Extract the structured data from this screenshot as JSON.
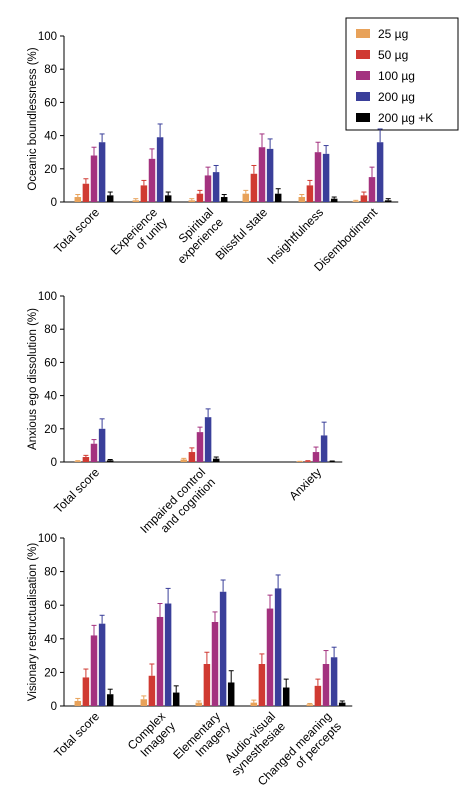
{
  "legend": {
    "items": [
      {
        "label": "25 µg",
        "color": "#e8a25a"
      },
      {
        "label": "50 µg",
        "color": "#d03a32"
      },
      {
        "label": "100 µg",
        "color": "#a3327f"
      },
      {
        "label": "200 µg",
        "color": "#3a3f9a"
      },
      {
        "label": "200 µg +K",
        "color": "#000000"
      }
    ]
  },
  "chart_data": [
    {
      "type": "bar",
      "ylabel": "Oceanic boundlessness (%)",
      "ylim": [
        0,
        100
      ],
      "yticks": [
        0,
        20,
        40,
        60,
        80,
        100
      ],
      "categories": [
        [
          "Total score"
        ],
        [
          "Experience",
          "of unity"
        ],
        [
          "Spiritual",
          "experience"
        ],
        [
          "Blissful state"
        ],
        [
          "Insightfulness"
        ],
        [
          "Disembodiment"
        ]
      ],
      "series": [
        {
          "name": "25 µg",
          "values": [
            3,
            1,
            1,
            5,
            3,
            0.5
          ],
          "errors": [
            1.5,
            1,
            1,
            2,
            1.5,
            0.5
          ]
        },
        {
          "name": "50 µg",
          "values": [
            11,
            10,
            5,
            17,
            10,
            4
          ],
          "errors": [
            3,
            3,
            2,
            5,
            3,
            2
          ]
        },
        {
          "name": "100 µg",
          "values": [
            28,
            26,
            16,
            33,
            30,
            15
          ],
          "errors": [
            5,
            6,
            5,
            8,
            6,
            6
          ]
        },
        {
          "name": "200 µg",
          "values": [
            36,
            39,
            18,
            32,
            29,
            36
          ],
          "errors": [
            5,
            8,
            4,
            6,
            5,
            8
          ]
        },
        {
          "name": "200 µg +K",
          "values": [
            4,
            4,
            3,
            5,
            2,
            1
          ],
          "errors": [
            2,
            2,
            1.5,
            3,
            1,
            1
          ]
        }
      ]
    },
    {
      "type": "bar",
      "ylabel": "Anxious ego dissolution (%)",
      "ylim": [
        0,
        100
      ],
      "yticks": [
        0,
        20,
        40,
        60,
        80,
        100
      ],
      "categories": [
        [
          "Total score"
        ],
        [
          "Impaired control",
          "and cognition"
        ],
        [
          "Anxiety"
        ]
      ],
      "series": [
        {
          "name": "25 µg",
          "values": [
            0.5,
            1.5,
            0.2
          ],
          "errors": [
            0.3,
            0.7,
            0.2
          ]
        },
        {
          "name": "50 µg",
          "values": [
            3,
            6,
            0.5
          ],
          "errors": [
            1,
            2.5,
            0.3
          ]
        },
        {
          "name": "100 µg",
          "values": [
            11,
            18,
            6
          ],
          "errors": [
            2.5,
            3,
            3
          ]
        },
        {
          "name": "200 µg",
          "values": [
            20,
            27,
            16
          ],
          "errors": [
            6,
            5,
            8
          ]
        },
        {
          "name": "200 µg +K",
          "values": [
            1,
            2,
            0.3
          ],
          "errors": [
            0.5,
            1,
            0.3
          ]
        }
      ]
    },
    {
      "type": "bar",
      "ylabel": "Visionary restructualisation (%)",
      "ylim": [
        0,
        100
      ],
      "yticks": [
        0,
        20,
        40,
        60,
        80,
        100
      ],
      "categories": [
        [
          "Total score"
        ],
        [
          "Complex",
          "Imagery"
        ],
        [
          "Elementary",
          "Imagery"
        ],
        [
          "Audio-visual",
          "synesthesiae"
        ],
        [
          "Changed meaning",
          "of percepts"
        ]
      ],
      "series": [
        {
          "name": "25 µg",
          "values": [
            3,
            4,
            2,
            2,
            1
          ],
          "errors": [
            1.5,
            2,
            1,
            1.5,
            0.5
          ]
        },
        {
          "name": "50 µg",
          "values": [
            17,
            18,
            25,
            25,
            12
          ],
          "errors": [
            5,
            7,
            7,
            6,
            4
          ]
        },
        {
          "name": "100 µg",
          "values": [
            42,
            53,
            50,
            58,
            25
          ],
          "errors": [
            6,
            8,
            6,
            8,
            8
          ]
        },
        {
          "name": "200 µg",
          "values": [
            49,
            61,
            68,
            70,
            29
          ],
          "errors": [
            5,
            9,
            7,
            8,
            6
          ]
        },
        {
          "name": "200 µg +K",
          "values": [
            7,
            8,
            14,
            11,
            2
          ],
          "errors": [
            3,
            4,
            7,
            5,
            1
          ]
        }
      ]
    }
  ]
}
